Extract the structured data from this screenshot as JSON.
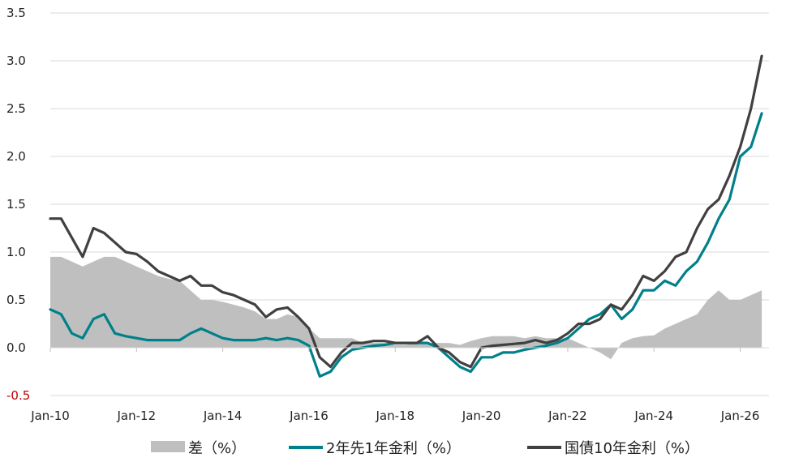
{
  "chart_data": {
    "type": "line",
    "title": "",
    "xlabel": "",
    "ylabel": "",
    "ylim": [
      -0.5,
      3.5
    ],
    "xlim": [
      "2010-01",
      "2026-09"
    ],
    "grid": "horizontal",
    "legend_position": "bottom",
    "y_ticks": [
      {
        "value": 3.5,
        "label": "3.5"
      },
      {
        "value": 3.0,
        "label": "3.0"
      },
      {
        "value": 2.5,
        "label": "2.5"
      },
      {
        "value": 2.0,
        "label": "2.0"
      },
      {
        "value": 1.5,
        "label": "1.5"
      },
      {
        "value": 1.0,
        "label": "1.0"
      },
      {
        "value": 0.5,
        "label": "0.5"
      },
      {
        "value": 0.0,
        "label": "0.0"
      },
      {
        "value": -0.5,
        "label": "-0.5"
      }
    ],
    "x_ticks": [
      {
        "value": "2010-01",
        "label": "Jan-10"
      },
      {
        "value": "2012-01",
        "label": "Jan-12"
      },
      {
        "value": "2014-01",
        "label": "Jan-14"
      },
      {
        "value": "2016-01",
        "label": "Jan-16"
      },
      {
        "value": "2018-01",
        "label": "Jan-18"
      },
      {
        "value": "2020-01",
        "label": "Jan-20"
      },
      {
        "value": "2022-01",
        "label": "Jan-22"
      },
      {
        "value": "2024-01",
        "label": "Jan-24"
      },
      {
        "value": "2026-01",
        "label": "Jan-26"
      }
    ],
    "x": [
      "2010-01",
      "2010-04",
      "2010-07",
      "2010-10",
      "2011-01",
      "2011-04",
      "2011-07",
      "2011-10",
      "2012-01",
      "2012-04",
      "2012-07",
      "2012-10",
      "2013-01",
      "2013-04",
      "2013-07",
      "2013-10",
      "2014-01",
      "2014-04",
      "2014-07",
      "2014-10",
      "2015-01",
      "2015-04",
      "2015-07",
      "2015-10",
      "2016-01",
      "2016-04",
      "2016-07",
      "2016-10",
      "2017-01",
      "2017-04",
      "2017-07",
      "2017-10",
      "2018-01",
      "2018-04",
      "2018-07",
      "2018-10",
      "2019-01",
      "2019-04",
      "2019-07",
      "2019-10",
      "2020-01",
      "2020-04",
      "2020-07",
      "2020-10",
      "2021-01",
      "2021-04",
      "2021-07",
      "2021-10",
      "2022-01",
      "2022-04",
      "2022-07",
      "2022-10",
      "2023-01",
      "2023-04",
      "2023-07",
      "2023-10",
      "2024-01",
      "2024-04",
      "2024-07",
      "2024-10",
      "2025-01",
      "2025-04",
      "2025-07",
      "2025-10",
      "2026-01",
      "2026-04",
      "2026-07"
    ],
    "series": [
      {
        "name": "差（%）",
        "kind": "area",
        "color": "#bfbfbf",
        "values": [
          0.95,
          0.95,
          0.9,
          0.85,
          0.9,
          0.95,
          0.95,
          0.9,
          0.85,
          0.8,
          0.75,
          0.72,
          0.7,
          0.6,
          0.5,
          0.5,
          0.48,
          0.45,
          0.42,
          0.38,
          0.3,
          0.3,
          0.35,
          0.32,
          0.2,
          0.1,
          0.1,
          0.1,
          0.1,
          0.05,
          0.05,
          0.05,
          0.03,
          0.03,
          0.05,
          0.05,
          0.05,
          0.05,
          0.03,
          0.07,
          0.1,
          0.12,
          0.12,
          0.12,
          0.1,
          0.12,
          0.1,
          0.1,
          0.1,
          0.05,
          0.0,
          -0.05,
          -0.12,
          0.05,
          0.1,
          0.12,
          0.13,
          0.2,
          0.25,
          0.3,
          0.35,
          0.5,
          0.6,
          0.5,
          0.5,
          0.55,
          0.6
        ]
      },
      {
        "name": "2年先1年金利（%）",
        "kind": "line",
        "color": "#00808a",
        "values": [
          0.4,
          0.35,
          0.15,
          0.1,
          0.3,
          0.35,
          0.15,
          0.12,
          0.1,
          0.08,
          0.08,
          0.08,
          0.08,
          0.15,
          0.2,
          0.15,
          0.1,
          0.08,
          0.08,
          0.08,
          0.1,
          0.08,
          0.1,
          0.08,
          0.02,
          -0.3,
          -0.25,
          -0.1,
          -0.02,
          0.0,
          0.02,
          0.03,
          0.05,
          0.05,
          0.05,
          0.05,
          0.0,
          -0.1,
          -0.2,
          -0.25,
          -0.1,
          -0.1,
          -0.05,
          -0.05,
          -0.02,
          0.0,
          0.02,
          0.05,
          0.1,
          0.2,
          0.3,
          0.35,
          0.45,
          0.3,
          0.4,
          0.6,
          0.6,
          0.7,
          0.65,
          0.8,
          0.9,
          1.1,
          1.35,
          1.55,
          2.0,
          2.1,
          2.45
        ]
      },
      {
        "name": "国債10年金利（%）",
        "kind": "line",
        "color": "#404040",
        "values": [
          1.35,
          1.35,
          1.15,
          0.95,
          1.25,
          1.2,
          1.1,
          1.0,
          0.98,
          0.9,
          0.8,
          0.75,
          0.7,
          0.75,
          0.65,
          0.65,
          0.58,
          0.55,
          0.5,
          0.45,
          0.32,
          0.4,
          0.42,
          0.32,
          0.2,
          -0.1,
          -0.2,
          -0.05,
          0.05,
          0.05,
          0.07,
          0.07,
          0.05,
          0.05,
          0.05,
          0.12,
          0.0,
          -0.05,
          -0.15,
          -0.2,
          0.0,
          0.02,
          0.03,
          0.04,
          0.05,
          0.08,
          0.05,
          0.08,
          0.15,
          0.25,
          0.25,
          0.3,
          0.45,
          0.4,
          0.55,
          0.75,
          0.7,
          0.8,
          0.95,
          1.0,
          1.25,
          1.45,
          1.55,
          1.8,
          2.1,
          2.5,
          3.05
        ]
      }
    ]
  }
}
